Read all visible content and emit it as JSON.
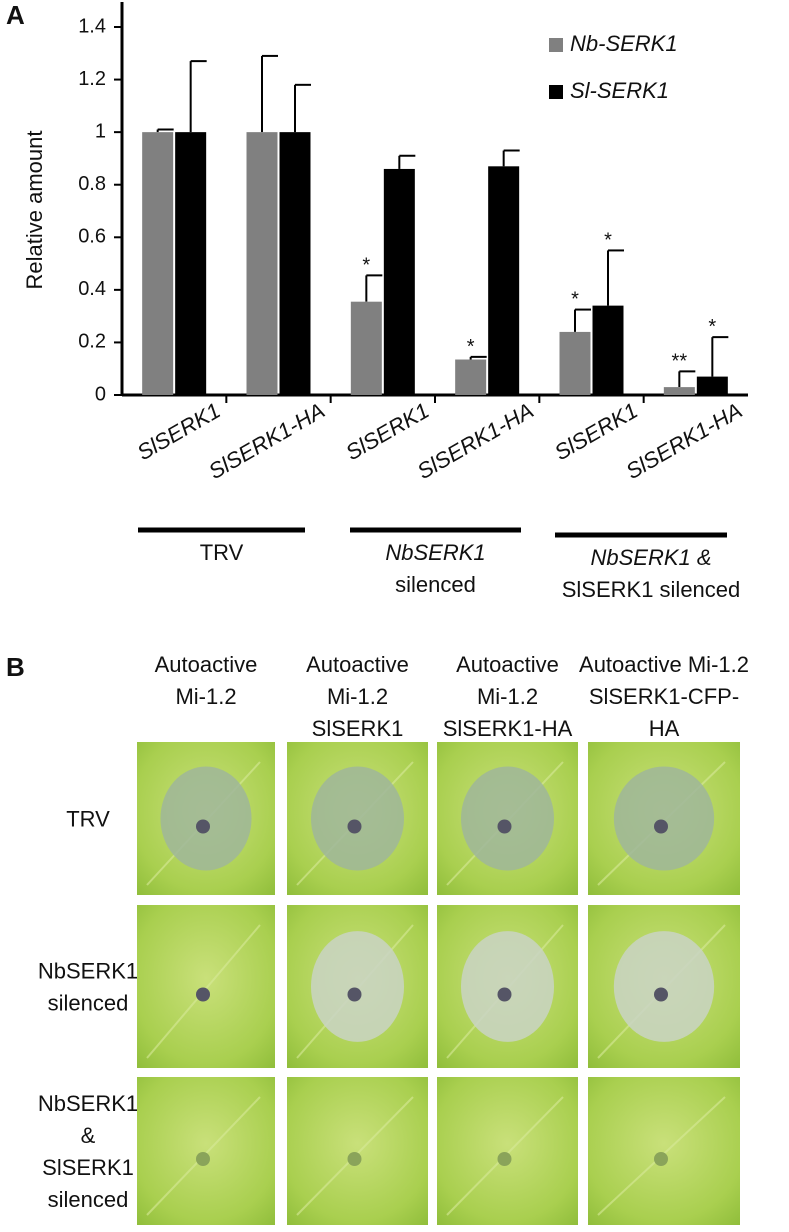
{
  "chart_data": {
    "type": "bar",
    "panel_label": "A",
    "y_label": "Relative amount",
    "categories": [
      "SlSERK1",
      "SlSERK1-HA",
      "SlSERK1",
      "SlSERK1-HA",
      "SlSERK1",
      "SlSERK1-HA"
    ],
    "series": [
      {
        "name": "Nb-SERK1",
        "color": "#808080",
        "values": [
          1.0,
          1.0,
          0.355,
          0.135,
          0.24,
          0.03
        ],
        "errors": [
          0.01,
          0.29,
          0.1,
          0.01,
          0.085,
          0.06
        ],
        "significance": [
          null,
          null,
          "*",
          "*",
          "*",
          "**"
        ]
      },
      {
        "name": "Sl-SERK1",
        "color": "#000000",
        "values": [
          1.0,
          1.0,
          0.86,
          0.87,
          0.34,
          0.07
        ],
        "errors": [
          0.27,
          0.18,
          0.05,
          0.06,
          0.21,
          0.15
        ],
        "significance": [
          null,
          null,
          null,
          null,
          "*",
          "*"
        ]
      }
    ],
    "ylim": [
      0,
      1.4
    ],
    "yticks": [
      0,
      0.2,
      0.4,
      0.6,
      0.8,
      1,
      1.2,
      1.4
    ],
    "groups": [
      {
        "lines": [
          "TRV"
        ]
      },
      {
        "lines": [
          "NbSERK1",
          "silenced"
        ]
      },
      {
        "lines": [
          "NbSERK1 &",
          "SlSERK1  silenced"
        ]
      }
    ]
  },
  "panel_b": {
    "panel_label": "B",
    "columns": [
      [
        "Autoactive",
        "Mi-1.2"
      ],
      [
        "Autoactive",
        "Mi-1.2",
        "SlSERK1"
      ],
      [
        "Autoactive",
        "Mi-1.2",
        "SlSERK1-HA"
      ],
      [
        "Autoactive  Mi-1.2",
        "SlSERK1-CFP-",
        "HA"
      ]
    ],
    "rows": [
      [
        "TRV"
      ],
      [
        "NbSERK1",
        "silenced"
      ],
      [
        "NbSERK1",
        "&",
        "SlSERK1",
        "silenced"
      ]
    ]
  }
}
